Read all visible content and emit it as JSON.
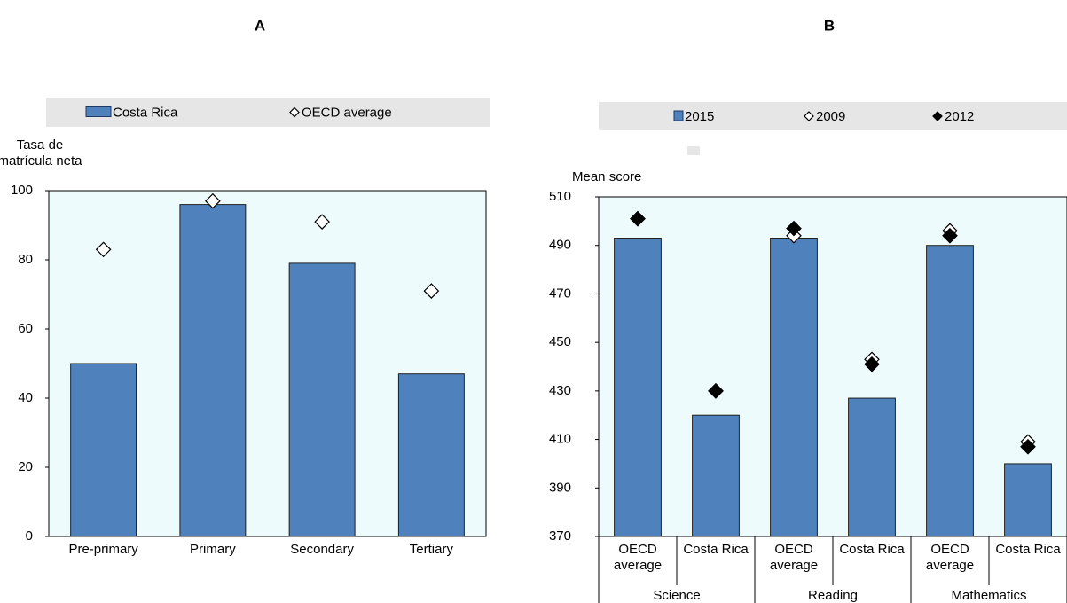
{
  "chart_data": [
    {
      "type": "bar",
      "title": "A",
      "y_label": "Tasa de matrícula neta",
      "categories": [
        "Pre-primary",
        "Primary",
        "Secondary",
        "Tertiary"
      ],
      "series": [
        {
          "name": "Costa Rica",
          "type": "bar",
          "color": "#4f81bd",
          "values": [
            50,
            96,
            79,
            47
          ]
        },
        {
          "name": "OECD average",
          "type": "diamond",
          "color": "#ffffff",
          "values": [
            83,
            97,
            91,
            71
          ]
        }
      ],
      "ylim": [
        0,
        100
      ],
      "yticks": [
        0,
        20,
        40,
        60,
        80,
        100
      ]
    },
    {
      "type": "bar",
      "title": "B",
      "y_label": "Mean score",
      "categories": [
        "OECD average",
        "Costa Rica",
        "OECD average",
        "Costa Rica",
        "OECD average",
        "Costa Rica"
      ],
      "groups": [
        "Science",
        "Reading",
        "Mathematics"
      ],
      "series": [
        {
          "name": "2015",
          "type": "bar",
          "color": "#4f81bd",
          "values": [
            493,
            420,
            493,
            427,
            490,
            400
          ]
        },
        {
          "name": "2009",
          "type": "diamond",
          "color": "#ffffff",
          "values": [
            501,
            430,
            494,
            443,
            496,
            409
          ]
        },
        {
          "name": "2012",
          "type": "diamond",
          "color": "#000000",
          "values": [
            501,
            430,
            497,
            441,
            494,
            407
          ]
        }
      ],
      "ylim": [
        370,
        510
      ],
      "yticks": [
        370,
        390,
        410,
        430,
        450,
        470,
        490,
        510
      ]
    }
  ]
}
